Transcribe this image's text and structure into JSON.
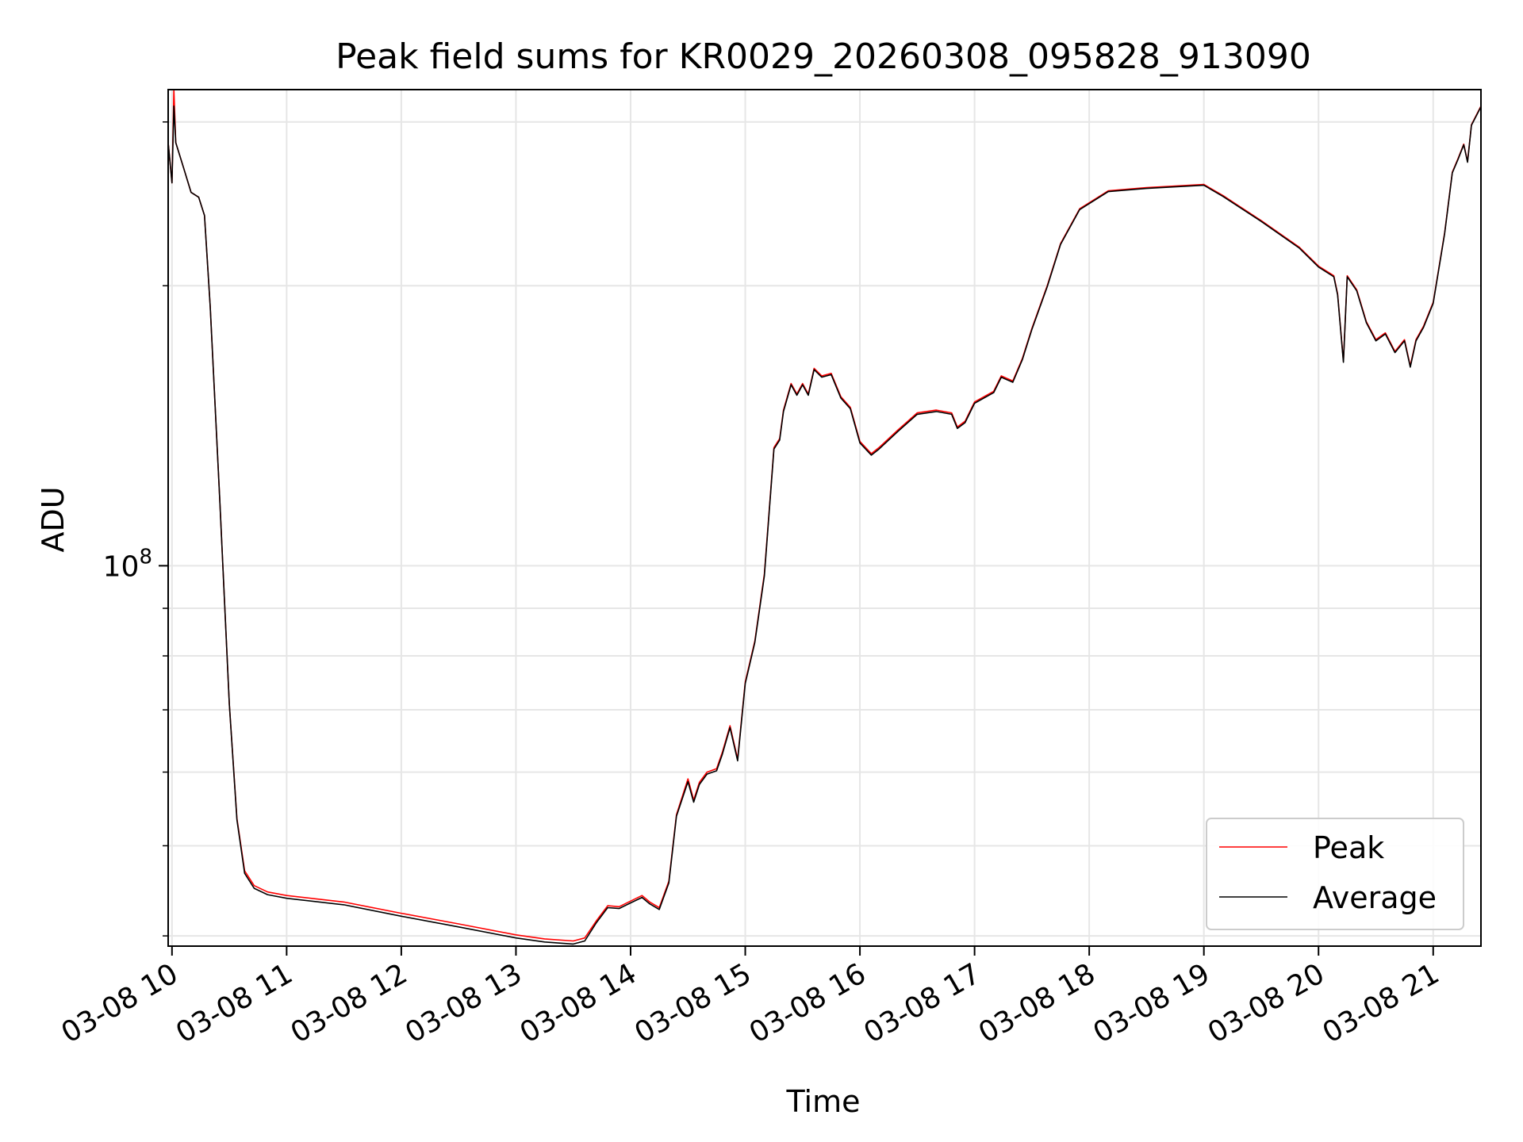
{
  "chart_data": {
    "type": "line",
    "title": "Peak field sums for KR0029_20260308_095828_913090",
    "xlabel": "Time",
    "ylabel": "ADU",
    "y_scale": "log",
    "ylim": [
      39000000,
      325000000
    ],
    "y_major_tick_labels": [
      {
        "value": 100000000,
        "base": "10",
        "exponent": "8"
      }
    ],
    "y_minor_ticks": [
      40000000,
      50000000,
      60000000,
      70000000,
      80000000,
      90000000,
      200000000,
      300000000
    ],
    "xlim": [
      "2026-03-08 09:58",
      "2026-03-08 21:25"
    ],
    "x_ticks": [
      {
        "time": "2026-03-08 10:00",
        "label": "03-08 10"
      },
      {
        "time": "2026-03-08 11:00",
        "label": "03-08 11"
      },
      {
        "time": "2026-03-08 12:00",
        "label": "03-08 12"
      },
      {
        "time": "2026-03-08 13:00",
        "label": "03-08 13"
      },
      {
        "time": "2026-03-08 14:00",
        "label": "03-08 14"
      },
      {
        "time": "2026-03-08 15:00",
        "label": "03-08 15"
      },
      {
        "time": "2026-03-08 16:00",
        "label": "03-08 16"
      },
      {
        "time": "2026-03-08 17:00",
        "label": "03-08 17"
      },
      {
        "time": "2026-03-08 18:00",
        "label": "03-08 18"
      },
      {
        "time": "2026-03-08 19:00",
        "label": "03-08 19"
      },
      {
        "time": "2026-03-08 20:00",
        "label": "03-08 20"
      },
      {
        "time": "2026-03-08 21:00",
        "label": "03-08 21"
      }
    ],
    "grid": true,
    "legend": {
      "position": "lower-right"
    },
    "x": [
      "2026-03-08 09:58",
      "2026-03-08 10:00",
      "2026-03-08 10:01",
      "2026-03-08 10:02",
      "2026-03-08 10:06",
      "2026-03-08 10:10",
      "2026-03-08 10:14",
      "2026-03-08 10:17",
      "2026-03-08 10:20",
      "2026-03-08 10:25",
      "2026-03-08 10:30",
      "2026-03-08 10:34",
      "2026-03-08 10:38",
      "2026-03-08 10:43",
      "2026-03-08 10:50",
      "2026-03-08 11:00",
      "2026-03-08 11:30",
      "2026-03-08 12:00",
      "2026-03-08 12:30",
      "2026-03-08 13:00",
      "2026-03-08 13:15",
      "2026-03-08 13:30",
      "2026-03-08 13:36",
      "2026-03-08 13:42",
      "2026-03-08 13:48",
      "2026-03-08 13:54",
      "2026-03-08 14:00",
      "2026-03-08 14:06",
      "2026-03-08 14:10",
      "2026-03-08 14:15",
      "2026-03-08 14:20",
      "2026-03-08 14:24",
      "2026-03-08 14:30",
      "2026-03-08 14:33",
      "2026-03-08 14:36",
      "2026-03-08 14:40",
      "2026-03-08 14:45",
      "2026-03-08 14:48",
      "2026-03-08 14:52",
      "2026-03-08 14:56",
      "2026-03-08 15:00",
      "2026-03-08 15:05",
      "2026-03-08 15:10",
      "2026-03-08 15:13",
      "2026-03-08 15:15",
      "2026-03-08 15:18",
      "2026-03-08 15:20",
      "2026-03-08 15:24",
      "2026-03-08 15:27",
      "2026-03-08 15:30",
      "2026-03-08 15:33",
      "2026-03-08 15:36",
      "2026-03-08 15:40",
      "2026-03-08 15:45",
      "2026-03-08 15:50",
      "2026-03-08 15:55",
      "2026-03-08 16:00",
      "2026-03-08 16:06",
      "2026-03-08 16:10",
      "2026-03-08 16:20",
      "2026-03-08 16:30",
      "2026-03-08 16:40",
      "2026-03-08 16:48",
      "2026-03-08 16:51",
      "2026-03-08 16:55",
      "2026-03-08 17:00",
      "2026-03-08 17:10",
      "2026-03-08 17:14",
      "2026-03-08 17:20",
      "2026-03-08 17:25",
      "2026-03-08 17:30",
      "2026-03-08 17:38",
      "2026-03-08 17:45",
      "2026-03-08 17:55",
      "2026-03-08 18:10",
      "2026-03-08 18:30",
      "2026-03-08 18:45",
      "2026-03-08 19:00",
      "2026-03-08 19:10",
      "2026-03-08 19:30",
      "2026-03-08 19:50",
      "2026-03-08 20:00",
      "2026-03-08 20:08",
      "2026-03-08 20:10",
      "2026-03-08 20:13",
      "2026-03-08 20:15",
      "2026-03-08 20:20",
      "2026-03-08 20:25",
      "2026-03-08 20:30",
      "2026-03-08 20:35",
      "2026-03-08 20:40",
      "2026-03-08 20:45",
      "2026-03-08 20:48",
      "2026-03-08 20:51",
      "2026-03-08 20:55",
      "2026-03-08 21:00",
      "2026-03-08 21:06",
      "2026-03-08 21:10",
      "2026-03-08 21:13",
      "2026-03-08 21:16",
      "2026-03-08 21:18",
      "2026-03-08 21:20",
      "2026-03-08 21:25"
    ],
    "series": [
      {
        "name": "Peak",
        "color": "#ff0000",
        "values": [
          285000000,
          258000000,
          325000000,
          285000000,
          268000000,
          252000000,
          249000000,
          238000000,
          190000000,
          118000000,
          71000000,
          53500000,
          47000000,
          45300000,
          44600000,
          44200000,
          43500000,
          42300000,
          41200000,
          40100000,
          39700000,
          39500000,
          39800000,
          41500000,
          43100000,
          43000000,
          43600000,
          44200000,
          43500000,
          42900000,
          45800000,
          54000000,
          59000000,
          56000000,
          58500000,
          60000000,
          60500000,
          63000000,
          67300000,
          62000000,
          75000000,
          83000000,
          98000000,
          118000000,
          134000000,
          137000000,
          147000000,
          157000000,
          153000000,
          157000000,
          153000000,
          163000000,
          160000000,
          161000000,
          152000000,
          148000000,
          136000000,
          132000000,
          134000000,
          140000000,
          146000000,
          147000000,
          146000000,
          141000000,
          143000000,
          150000000,
          154000000,
          160000000,
          158000000,
          167000000,
          180000000,
          200000000,
          222000000,
          242000000,
          253000000,
          255000000,
          256000000,
          257000000,
          250000000,
          235000000,
          220000000,
          210000000,
          205000000,
          196000000,
          166000000,
          205000000,
          198000000,
          183000000,
          175000000,
          178000000,
          170000000,
          175000000,
          164000000,
          175000000,
          181000000,
          192000000,
          228000000,
          265000000,
          274000000,
          284000000,
          272000000,
          298000000,
          312000000
        ]
      },
      {
        "name": "Average",
        "color": "#000000",
        "values": [
          285000000,
          258000000,
          312000000,
          285000000,
          268000000,
          252000000,
          249000000,
          238000000,
          190000000,
          118000000,
          71000000,
          53300000,
          46700000,
          45000000,
          44300000,
          43900000,
          43200000,
          42000000,
          40900000,
          39800000,
          39400000,
          39200000,
          39500000,
          41300000,
          42900000,
          42800000,
          43400000,
          44000000,
          43300000,
          42700000,
          45600000,
          53800000,
          58600000,
          55700000,
          58200000,
          59700000,
          60200000,
          62700000,
          67000000,
          61700000,
          74700000,
          82700000,
          97500000,
          117500000,
          133500000,
          136500000,
          146500000,
          156500000,
          152500000,
          156500000,
          152500000,
          162500000,
          159500000,
          160500000,
          151500000,
          147500000,
          135500000,
          131500000,
          133500000,
          139500000,
          145500000,
          146500000,
          145500000,
          140500000,
          142500000,
          149500000,
          153500000,
          159500000,
          157500000,
          166500000,
          179500000,
          199500000,
          221500000,
          241500000,
          252500000,
          254500000,
          255500000,
          256500000,
          249500000,
          234500000,
          219500000,
          209500000,
          204500000,
          195500000,
          165500000,
          204500000,
          197500000,
          182500000,
          174500000,
          177500000,
          169500000,
          174500000,
          163500000,
          174500000,
          180500000,
          191500000,
          227500000,
          264500000,
          273500000,
          283500000,
          271500000,
          297500000,
          311500000
        ]
      }
    ]
  }
}
